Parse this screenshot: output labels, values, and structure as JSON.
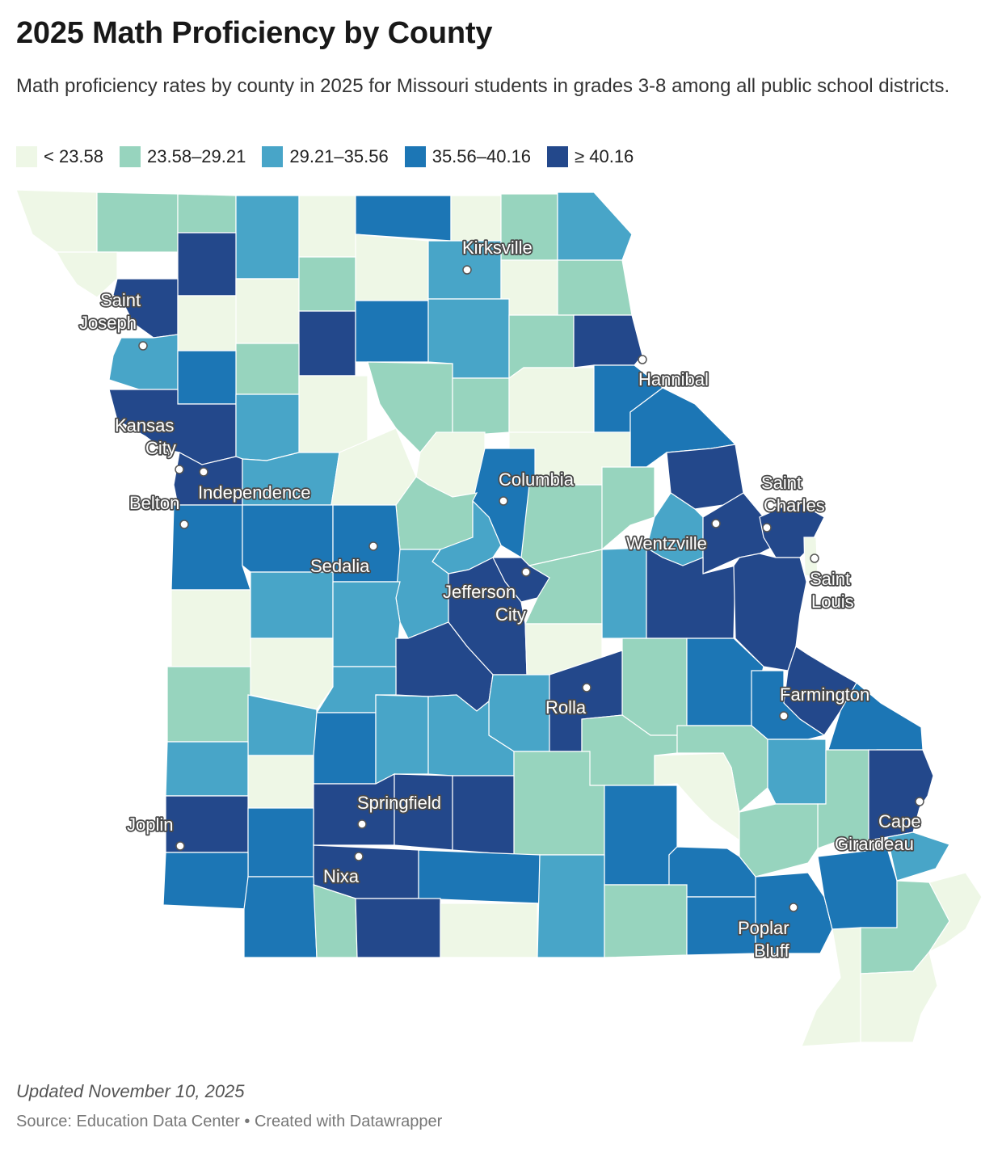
{
  "title": "2025 Math Proficiency by County",
  "subtitle": "Math proficiency rates by county in 2025 for Missouri students in grades 3-8 among all public school districts.",
  "legend": [
    {
      "label": "< 23.58",
      "color": "#eef7e6"
    },
    {
      "label": "23.58–29.21",
      "color": "#97d4be"
    },
    {
      "label": "29.21–35.56",
      "color": "#48a5c8"
    },
    {
      "label": "35.56–40.16",
      "color": "#1c76b5"
    },
    {
      "label": "≥ 40.16",
      "color": "#23488b"
    }
  ],
  "cities": [
    {
      "name": "Kirksville",
      "lines": [
        "Kirksville"
      ]
    },
    {
      "name": "Saint Joseph",
      "lines": [
        "Saint",
        "Joseph"
      ]
    },
    {
      "name": "Hannibal",
      "lines": [
        "Hannibal"
      ]
    },
    {
      "name": "Kansas City",
      "lines": [
        "Kansas",
        "City"
      ]
    },
    {
      "name": "Independence",
      "lines": [
        "Independence"
      ]
    },
    {
      "name": "Belton",
      "lines": [
        "Belton"
      ]
    },
    {
      "name": "Columbia",
      "lines": [
        "Columbia"
      ]
    },
    {
      "name": "Saint Charles",
      "lines": [
        "Saint",
        "Charles"
      ]
    },
    {
      "name": "Wentzville",
      "lines": [
        "Wentzville"
      ]
    },
    {
      "name": "Saint Louis",
      "lines": [
        "Saint",
        "Louis"
      ]
    },
    {
      "name": "Sedalia",
      "lines": [
        "Sedalia"
      ]
    },
    {
      "name": "Jefferson City",
      "lines": [
        "Jefferson",
        "City"
      ]
    },
    {
      "name": "Rolla",
      "lines": [
        "Rolla"
      ]
    },
    {
      "name": "Farmington",
      "lines": [
        "Farmington"
      ]
    },
    {
      "name": "Springfield",
      "lines": [
        "Springfield"
      ]
    },
    {
      "name": "Joplin",
      "lines": [
        "Joplin"
      ]
    },
    {
      "name": "Cape Girardeau",
      "lines": [
        "Cape",
        "Girardeau"
      ]
    },
    {
      "name": "Nixa",
      "lines": [
        "Nixa"
      ]
    },
    {
      "name": "Poplar Bluff",
      "lines": [
        "Poplar",
        "Bluff"
      ]
    }
  ],
  "footer": {
    "updated": "Updated November 10, 2025",
    "source": "Source: Education Data Center • Created with Datawrapper"
  }
}
